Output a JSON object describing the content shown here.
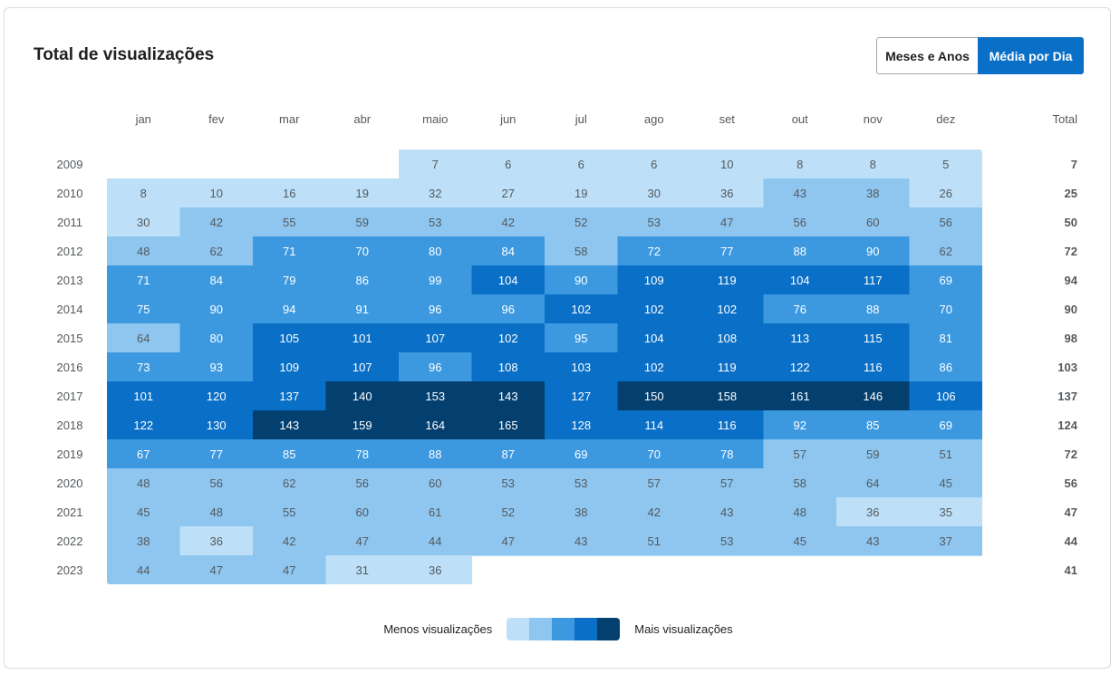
{
  "title": "Total de visualizações",
  "toggle": {
    "months_years": "Meses e Anos",
    "daily_avg": "Média por Dia",
    "active": "daily_avg"
  },
  "legend": {
    "less": "Menos visualizações",
    "more": "Mais visualizações",
    "colors": [
      "#bde0f8",
      "#8ec6f0",
      "#3c99e0",
      "#0a6fc6",
      "#033f6f"
    ]
  },
  "chart_data": {
    "type": "heatmap",
    "columns": [
      "jan",
      "fev",
      "mar",
      "abr",
      "maio",
      "jun",
      "jul",
      "ago",
      "set",
      "out",
      "nov",
      "dez"
    ],
    "total_label": "Total",
    "rows": [
      {
        "year": "2009",
        "values": [
          null,
          null,
          null,
          null,
          7,
          6,
          6,
          6,
          10,
          8,
          8,
          5
        ],
        "total": 7
      },
      {
        "year": "2010",
        "values": [
          8,
          10,
          16,
          19,
          32,
          27,
          19,
          30,
          36,
          43,
          38,
          26
        ],
        "total": 25
      },
      {
        "year": "2011",
        "values": [
          30,
          42,
          55,
          59,
          53,
          42,
          52,
          53,
          47,
          56,
          60,
          56
        ],
        "total": 50
      },
      {
        "year": "2012",
        "values": [
          48,
          62,
          71,
          70,
          80,
          84,
          58,
          72,
          77,
          88,
          90,
          62
        ],
        "total": 72
      },
      {
        "year": "2013",
        "values": [
          71,
          84,
          79,
          86,
          99,
          104,
          90,
          109,
          119,
          104,
          117,
          69
        ],
        "total": 94
      },
      {
        "year": "2014",
        "values": [
          75,
          90,
          94,
          91,
          96,
          96,
          102,
          102,
          102,
          76,
          88,
          70
        ],
        "total": 90
      },
      {
        "year": "2015",
        "values": [
          64,
          80,
          105,
          101,
          107,
          102,
          95,
          104,
          108,
          113,
          115,
          81
        ],
        "total": 98
      },
      {
        "year": "2016",
        "values": [
          73,
          93,
          109,
          107,
          96,
          108,
          103,
          102,
          119,
          122,
          116,
          86
        ],
        "total": 103
      },
      {
        "year": "2017",
        "values": [
          101,
          120,
          137,
          140,
          153,
          143,
          127,
          150,
          158,
          161,
          146,
          106
        ],
        "total": 137
      },
      {
        "year": "2018",
        "values": [
          122,
          130,
          143,
          159,
          164,
          165,
          128,
          114,
          116,
          92,
          85,
          69
        ],
        "total": 124
      },
      {
        "year": "2019",
        "values": [
          67,
          77,
          85,
          78,
          88,
          87,
          69,
          70,
          78,
          57,
          59,
          51
        ],
        "total": 72
      },
      {
        "year": "2020",
        "values": [
          48,
          56,
          62,
          56,
          60,
          53,
          53,
          57,
          57,
          58,
          64,
          45
        ],
        "total": 56
      },
      {
        "year": "2021",
        "values": [
          45,
          48,
          55,
          60,
          61,
          52,
          38,
          42,
          43,
          48,
          36,
          35
        ],
        "total": 47
      },
      {
        "year": "2022",
        "values": [
          38,
          36,
          42,
          47,
          44,
          47,
          43,
          51,
          53,
          45,
          43,
          37
        ],
        "total": 44
      },
      {
        "year": "2023",
        "values": [
          44,
          47,
          47,
          31,
          36,
          null,
          null,
          null,
          null,
          null,
          null,
          null
        ],
        "total": 41
      }
    ],
    "color_scale": {
      "thresholds": [
        36,
        65,
        100,
        137
      ],
      "text_dark": "#54595d",
      "text_light": "#ffffff"
    }
  }
}
